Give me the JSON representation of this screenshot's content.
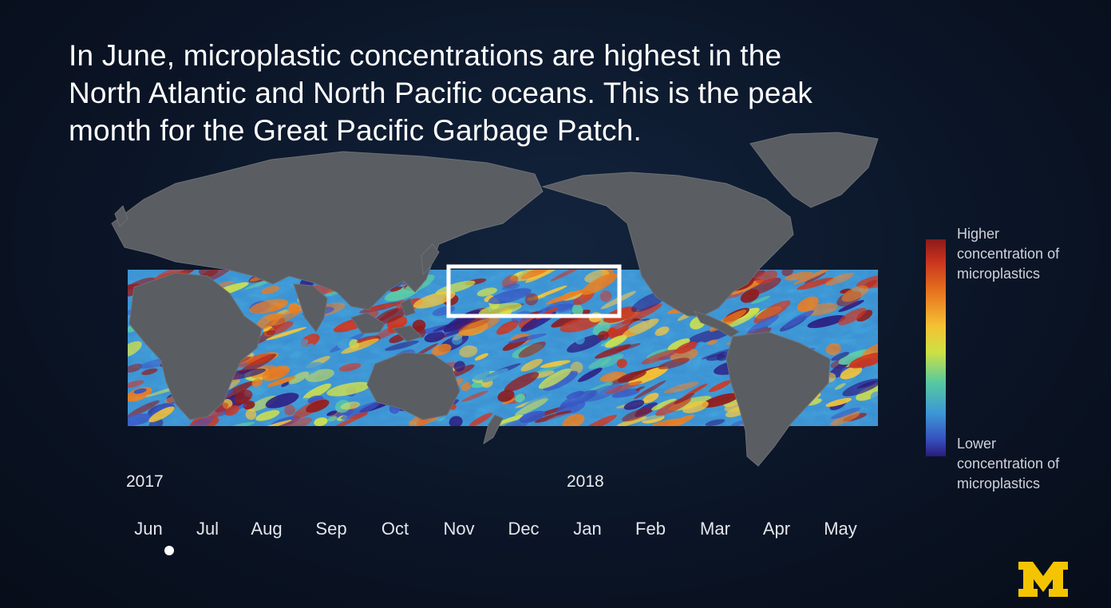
{
  "headline": {
    "line1": "In June, microplastic concentrations are highest in the",
    "line2": "North Atlantic and North Pacific oceans. This is the peak",
    "line3": "month for the Great Pacific Garbage Patch."
  },
  "legend": {
    "high_line1": "Higher",
    "high_line2": "concentration of",
    "high_line3": "microplastics",
    "low_line1": "Lower",
    "low_line2": "concentration of",
    "low_line3": "microplastics",
    "colors": [
      "#8a1a1a",
      "#e8771f",
      "#f4c233",
      "#56c9a0",
      "#3d97d6",
      "#2a1b7a"
    ]
  },
  "timeline": {
    "year_start": "2017",
    "year_end": "2018",
    "months": [
      "Jun",
      "Jul",
      "Aug",
      "Sep",
      "Oct",
      "Nov",
      "Dec",
      "Jan",
      "Feb",
      "Mar",
      "Apr",
      "May"
    ],
    "selected": "Jun"
  },
  "map": {
    "highlight_box": "Great Pacific Garbage Patch",
    "ocean_colors": [
      "#2a1b7a",
      "#3651c0",
      "#3d97d6",
      "#56c9a0",
      "#cde044",
      "#f4c233",
      "#e8771f",
      "#c8331d",
      "#8a1a1a"
    ],
    "land_color": "#5a5d61"
  },
  "logo": {
    "text": "M",
    "color": "#f5c400"
  }
}
